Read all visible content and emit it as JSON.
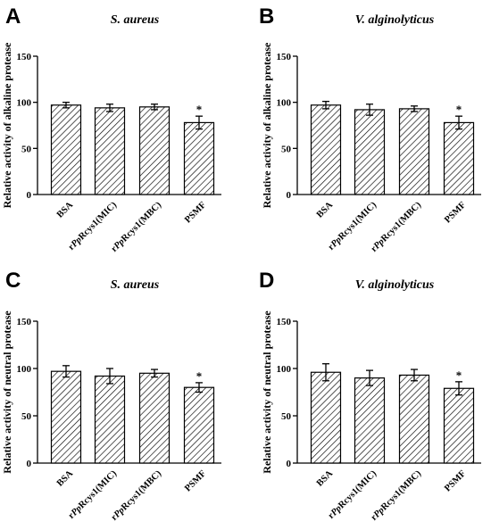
{
  "chart_data": [
    {
      "type": "bar",
      "panel": "A",
      "title": "S. aureus",
      "ylabel": "Relative activity of alkaline protease",
      "ylim": [
        0,
        150
      ],
      "yticks": [
        "0",
        "50",
        "100",
        "150"
      ],
      "categories": [
        "BSA",
        "rPpRcys1(MIC)",
        "rPpRcys1(MBC)",
        "PSMF"
      ],
      "values": [
        97,
        94,
        95,
        78
      ],
      "errors": [
        3,
        4,
        3,
        7
      ],
      "annotations": [
        "",
        "",
        "",
        "*"
      ]
    },
    {
      "type": "bar",
      "panel": "B",
      "title": "V. alginolyticus",
      "ylabel": "Relative activity of alkaline protease",
      "ylim": [
        0,
        150
      ],
      "yticks": [
        "0",
        "50",
        "100",
        "150"
      ],
      "categories": [
        "BSA",
        "rPpRcys1(MIC)",
        "rPpRcys1(MBC)",
        "PSMF"
      ],
      "values": [
        97,
        92,
        93,
        78
      ],
      "errors": [
        4,
        6,
        3,
        7
      ],
      "annotations": [
        "",
        "",
        "",
        "*"
      ]
    },
    {
      "type": "bar",
      "panel": "C",
      "title": "S. aureus",
      "ylabel": "Relative activity of neutral protease",
      "ylim": [
        0,
        150
      ],
      "yticks": [
        "0",
        "50",
        "100",
        "150"
      ],
      "categories": [
        "BSA",
        "rPpRcys1(MIC)",
        "rPpRcys1(MBC)",
        "PSMF"
      ],
      "values": [
        97,
        92,
        95,
        80
      ],
      "errors": [
        6,
        8,
        4,
        5
      ],
      "annotations": [
        "",
        "",
        "",
        "*"
      ]
    },
    {
      "type": "bar",
      "panel": "D",
      "title": "V. alginolyticus",
      "ylabel": "Relative activity of neutral protease",
      "ylim": [
        0,
        150
      ],
      "yticks": [
        "0",
        "50",
        "100",
        "150"
      ],
      "categories": [
        "BSA",
        "rPpRcys1(MIC)",
        "rPpRcys1(MBC)",
        "PSMF"
      ],
      "values": [
        96,
        90,
        93,
        79
      ],
      "errors": [
        9,
        8,
        6,
        7
      ],
      "annotations": [
        "",
        "",
        "",
        "*"
      ]
    }
  ]
}
